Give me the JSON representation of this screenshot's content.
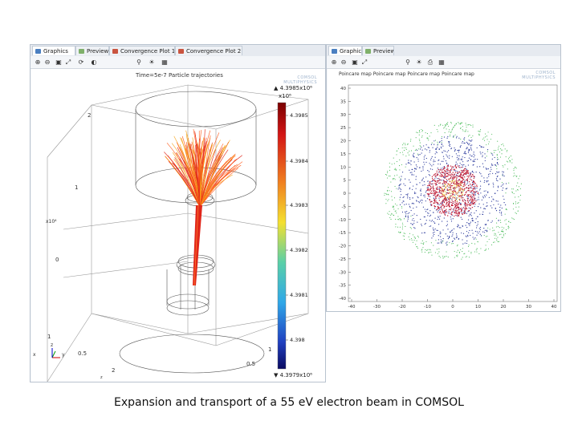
{
  "left_panel": {
    "tabs": [
      {
        "label": "Graphics",
        "icon": "graphics-icon",
        "color": "#4a7fc1",
        "active": true
      },
      {
        "label": "Preview",
        "icon": "preview-icon",
        "color": "#7fb06a",
        "active": false
      },
      {
        "label": "Convergence Plot 1",
        "icon": "convergence-plot-icon",
        "color": "#c9543f",
        "active": false
      },
      {
        "label": "Convergence Plot 2",
        "icon": "convergence-plot-icon",
        "color": "#c9543f",
        "active": false
      }
    ],
    "toolbar_icons": [
      "zoom-in-icon",
      "zoom-out-icon",
      "zoom-box-icon",
      "zoom-extents-icon",
      "view-icon",
      "transparency-icon",
      "select-icon",
      "scene-light-icon",
      "snapshot-icon"
    ],
    "plot_title": "Time=5e-7 Particle trajectories",
    "logo_line1": "COMSOL",
    "logo_line2": "MULTIPHYSICS",
    "colorbar": {
      "max_label": "▲ 4.3985x10⁶",
      "scale_label": "x10⁶",
      "tick_labels": [
        "4.3985",
        "4.3984",
        "4.3983",
        "4.3982",
        "4.3981",
        "4.398"
      ],
      "min_label": "▼ 4.3979x10⁶"
    },
    "axis_labels": [
      "2",
      "1",
      "x10⁴",
      "0",
      "1",
      "0.5",
      "1",
      "0.5",
      "2"
    ],
    "z_axis_unit": "z",
    "triad": {
      "x": "x",
      "y": "y",
      "z": "z"
    }
  },
  "right_panel": {
    "tabs": [
      {
        "label": "Graphics",
        "icon": "graphics-icon",
        "color": "#4a7fc1",
        "active": true
      },
      {
        "label": "Preview",
        "icon": "preview-icon",
        "color": "#7fb06a",
        "active": false
      }
    ],
    "toolbar_icons": [
      "zoom-in-icon",
      "zoom-out-icon",
      "zoom-box-icon",
      "zoom-extents-icon",
      "select-icon",
      "scene-light-icon",
      "print-icon",
      "snapshot-icon"
    ],
    "plot_title": "Poincare map Poincare map Poincare map Poincare map",
    "logo_line1": "COMSOL",
    "logo_line2": "MULTIPHYSICS",
    "y_ticks": [
      "40",
      "35",
      "30",
      "25",
      "20",
      "15",
      "10",
      "5",
      "0",
      "-5",
      "-10",
      "-15",
      "-20",
      "-25",
      "-30",
      "-35",
      "-40"
    ],
    "x_ticks": [
      "-40",
      "-30",
      "-20",
      "-10",
      "0",
      "10",
      "20",
      "30",
      "40"
    ]
  },
  "caption": "Expansion and transport of a 55 eV electron beam in COMSOL",
  "colors": {
    "panel_border": "#b9c3cf",
    "beam_red": "#e0261a",
    "beam_orange": "#f6a51c",
    "dots_green": "#39b54a",
    "dots_blue": "#2b3a9c",
    "dots_red": "#c0203a"
  }
}
